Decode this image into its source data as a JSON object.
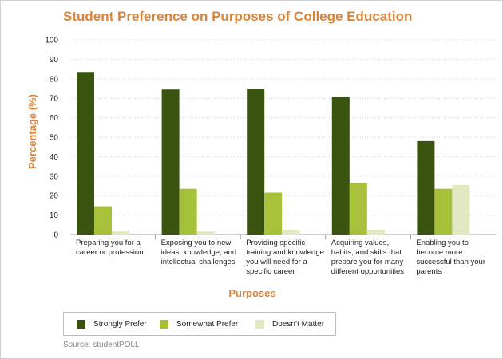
{
  "chart_data": {
    "type": "bar",
    "title": "Student Preference on Purposes of College Education",
    "xlabel": "Purposes",
    "ylabel": "Percentage (%)",
    "ylim": [
      0,
      100
    ],
    "yticks": [
      "0",
      "10",
      "20",
      "30",
      "40",
      "50",
      "60",
      "70",
      "80",
      "90",
      "100"
    ],
    "grid": true,
    "legend_position": "bottom",
    "categories": [
      "Preparing you for a career or profession",
      "Exposing you to new ideas, knowledge, and intellectual challenges",
      "Providing specific training and knowledge you will need for a specific career",
      "Acquiring values, habits, and skills that prepare you for many different opportunities",
      "Enabling you to become more successful than your parents"
    ],
    "series": [
      {
        "name": "Strongly Prefer",
        "color": "#3a5410",
        "values": [
          83.5,
          74.5,
          75,
          70.5,
          48
        ]
      },
      {
        "name": "Somewhat Prefer",
        "color": "#a8c13b",
        "values": [
          14.5,
          23.5,
          21.5,
          26.5,
          23.5
        ]
      },
      {
        "name": "Doesn’t Matter",
        "color": "#e2e8c2",
        "values": [
          2,
          2,
          2.5,
          2.5,
          25.5
        ]
      }
    ],
    "source": "Source: studentPOLL"
  }
}
